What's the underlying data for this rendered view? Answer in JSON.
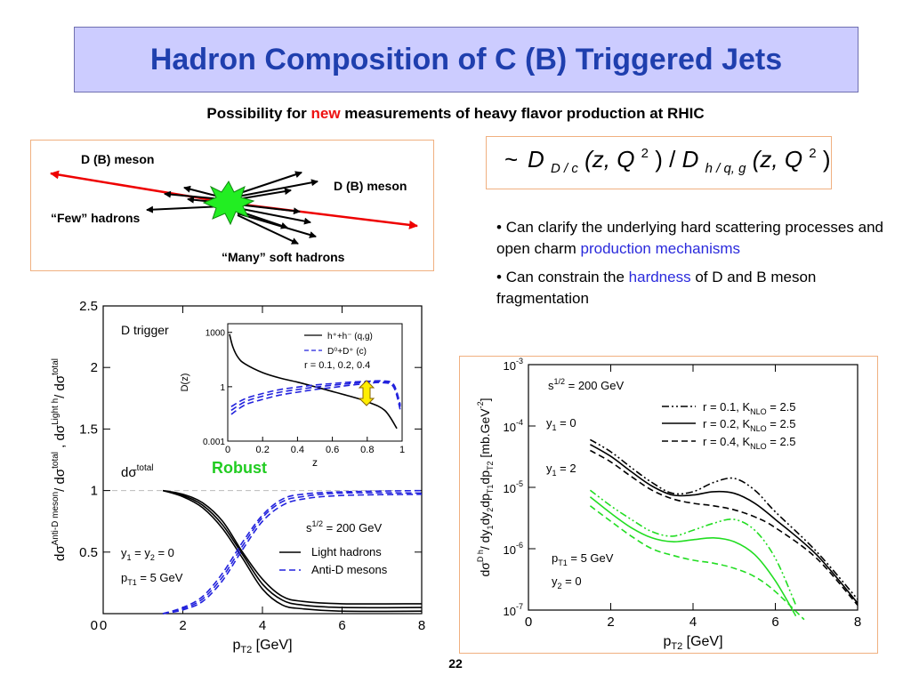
{
  "slide": {
    "title": "Hadron Composition of C (B) Triggered Jets",
    "subtitle_prefix": "Possibility for ",
    "subtitle_highlight": "new",
    "subtitle_suffix": " measurements of heavy flavor production at RHIC",
    "page_number": "22",
    "colors": {
      "title": "#1f3fae",
      "title_bg": "#ccccff",
      "highlight": "#ee1111",
      "link_blue": "#2a2adc"
    }
  },
  "diagram": {
    "label_left_meson": "D (B) meson",
    "label_right_meson": "D (B) meson",
    "label_few": "“Few” hadrons",
    "label_many": "“Many” soft hadrons"
  },
  "formula": {
    "tilde": "~",
    "numerator": "D",
    "num_sub": "D / c",
    "args": "(z, Q",
    "slash": ") / ",
    "denominator": "D",
    "den_sub": "h / q, g",
    "args2": "(z, Q",
    "close": ")",
    "sup": "2"
  },
  "bullets": [
    {
      "prefix": "Can clarify the underlying hard scattering processes and open charm ",
      "highlight": "production mechanisms",
      "suffix": ""
    },
    {
      "prefix": "Can constrain the ",
      "highlight": "hardness",
      "suffix": " of D and B meson fragmentation"
    }
  ],
  "chart_data": [
    {
      "type": "line",
      "title": "D trigger",
      "xlabel": "p_T2 [GeV]",
      "ylabel": "dσ^Anti-D meson / dσ^total , dσ^Light h / dσ^total",
      "xlim": [
        0,
        8
      ],
      "ylim": [
        0,
        2.5
      ],
      "xticks": [
        0,
        2,
        4,
        6,
        8
      ],
      "yticks": [
        0.5,
        1,
        1.5,
        2,
        2.5
      ],
      "annotations": {
        "total": "dσ^total",
        "robust": "Robust",
        "sqrt_s": "s^1/2 = 200 GeV",
        "rapidity": "y1 = y2 = 0",
        "pt1": "pT1 = 5 GeV"
      },
      "legend": [
        "Light hadrons",
        "Anti-D mesons"
      ],
      "series": [
        {
          "name": "Light hadrons",
          "color": "#000000",
          "dash": "solid",
          "x": [
            1.5,
            2,
            2.5,
            3,
            3.5,
            4,
            4.5,
            5,
            6,
            8
          ],
          "values": [
            1.0,
            0.97,
            0.9,
            0.75,
            0.5,
            0.28,
            0.14,
            0.1,
            0.08,
            0.08
          ]
        },
        {
          "name": "Light hadrons",
          "color": "#000000",
          "dash": "solid",
          "x": [
            1.5,
            2,
            2.5,
            3,
            3.5,
            4,
            4.5,
            5,
            6,
            8
          ],
          "values": [
            1.0,
            0.96,
            0.88,
            0.72,
            0.48,
            0.24,
            0.11,
            0.07,
            0.05,
            0.05
          ]
        },
        {
          "name": "Light hadrons",
          "color": "#000000",
          "dash": "solid",
          "x": [
            1.5,
            2,
            2.5,
            3,
            3.5,
            4,
            4.5,
            5,
            6,
            8
          ],
          "values": [
            1.0,
            0.95,
            0.86,
            0.69,
            0.45,
            0.2,
            0.07,
            0.04,
            0.02,
            0.02
          ]
        },
        {
          "name": "Anti-D mesons",
          "color": "#2222dd",
          "dash": "dashed",
          "x": [
            1.5,
            2,
            2.5,
            3,
            3.5,
            4,
            4.5,
            5,
            6,
            8
          ],
          "values": [
            0.0,
            0.03,
            0.1,
            0.27,
            0.52,
            0.75,
            0.88,
            0.93,
            0.96,
            0.97
          ]
        },
        {
          "name": "Anti-D mesons",
          "color": "#2222dd",
          "dash": "dashed",
          "x": [
            1.5,
            2,
            2.5,
            3,
            3.5,
            4,
            4.5,
            5,
            6,
            8
          ],
          "values": [
            0.0,
            0.04,
            0.12,
            0.3,
            0.55,
            0.78,
            0.91,
            0.95,
            0.98,
            0.98
          ]
        },
        {
          "name": "Anti-D mesons",
          "color": "#2222dd",
          "dash": "dashed",
          "x": [
            1.5,
            2,
            2.5,
            3,
            3.5,
            4,
            4.5,
            5,
            6,
            8
          ],
          "values": [
            0.0,
            0.05,
            0.14,
            0.33,
            0.58,
            0.8,
            0.93,
            0.97,
            0.99,
            1.0
          ]
        }
      ]
    },
    {
      "type": "line",
      "title": "inset",
      "xlabel": "z",
      "ylabel": "D(z)",
      "xlim": [
        0,
        1
      ],
      "ylim_log": [
        0.001,
        3000
      ],
      "xticks": [
        0,
        0.2,
        0.4,
        0.6,
        0.8,
        1
      ],
      "xtick_labels": [
        "0",
        "0.2",
        "0.4",
        "0.6",
        "0.8",
        "1"
      ],
      "yticks": [
        0.001,
        1,
        1000
      ],
      "ytick_labels": [
        "0.001",
        "1",
        "1000"
      ],
      "legend": [
        "h⁺+h⁻ (q,g)",
        "D⁰+D⁺ (c)",
        "r = 0.1, 0.2, 0.4"
      ],
      "series": [
        {
          "name": "h⁺+h⁻ (q,g)",
          "color": "#000000",
          "dash": "solid",
          "x": [
            0.01,
            0.03,
            0.06,
            0.1,
            0.2,
            0.3,
            0.4,
            0.5,
            0.6,
            0.7,
            0.8,
            0.9,
            0.97
          ],
          "values": [
            800,
            150,
            40,
            18,
            6,
            3,
            1.8,
            1.0,
            0.55,
            0.3,
            0.15,
            0.05,
            0.005
          ]
        },
        {
          "name": "D⁰+D⁺ (c)",
          "color": "#2222dd",
          "dash": "dashed",
          "x": [
            0.02,
            0.1,
            0.2,
            0.3,
            0.4,
            0.5,
            0.6,
            0.7,
            0.8,
            0.88,
            0.95,
            0.99
          ],
          "values": [
            0.03,
            0.1,
            0.2,
            0.35,
            0.5,
            0.7,
            0.9,
            1.2,
            1.5,
            1.7,
            1.0,
            0.05
          ]
        },
        {
          "name": "D⁰+D⁺ (c)",
          "color": "#2222dd",
          "dash": "dashed",
          "x": [
            0.02,
            0.1,
            0.2,
            0.3,
            0.4,
            0.5,
            0.6,
            0.7,
            0.8,
            0.88,
            0.95,
            0.99
          ],
          "values": [
            0.05,
            0.15,
            0.3,
            0.5,
            0.7,
            0.95,
            1.2,
            1.5,
            1.8,
            1.9,
            1.2,
            0.08
          ]
        },
        {
          "name": "D⁰+D⁺ (c)",
          "color": "#2222dd",
          "dash": "dashed",
          "x": [
            0.02,
            0.1,
            0.2,
            0.3,
            0.4,
            0.5,
            0.6,
            0.7,
            0.8,
            0.88,
            0.95,
            0.99
          ],
          "values": [
            0.08,
            0.22,
            0.42,
            0.7,
            0.95,
            1.25,
            1.5,
            1.8,
            2.0,
            2.1,
            1.4,
            0.1
          ]
        }
      ]
    },
    {
      "type": "line",
      "title": "",
      "xlabel": "p_T2 [GeV]",
      "ylabel": "dσ^{D h}/ dy1 dy2 dpT1 dpT2 [mb.GeV^-2]",
      "xlim": [
        0,
        8
      ],
      "ylim_log": [
        1e-07,
        0.001
      ],
      "xticks": [
        0,
        2,
        4,
        6,
        8
      ],
      "yticks": [
        1e-07,
        1e-06,
        1e-05,
        0.0001,
        0.001
      ],
      "ytick_labels": [
        "10^-7",
        "10^-6",
        "10^-5",
        "10^-4",
        "10^-3"
      ],
      "annotations": {
        "sqrt_s": "s^1/2 = 200 GeV",
        "y1_0": "y1 = 0",
        "y1_2": "y1 = 2",
        "pt1": "pT1 = 5 GeV",
        "y2": "y2 = 0"
      },
      "legend": [
        "r = 0.1, K_NLO = 2.5",
        "r = 0.2, K_NLO = 2.5",
        "r = 0.4, K_NLO = 2.5"
      ],
      "series": [
        {
          "name": "r = 0.1, K_NLO = 2.5",
          "color": "#000000",
          "dash": "dashdotdot",
          "x": [
            1.5,
            2,
            2.5,
            3,
            3.5,
            4,
            4.5,
            5,
            5.5,
            6,
            7,
            8
          ],
          "values": [
            6e-05,
            3.8e-05,
            2.1e-05,
            1.2e-05,
            8e-06,
            8.5e-06,
            1.2e-05,
            1.4e-05,
            9e-06,
            4e-06,
            9e-07,
            1.5e-07
          ]
        },
        {
          "name": "r = 0.2, K_NLO = 2.5",
          "color": "#000000",
          "dash": "solid",
          "x": [
            1.5,
            2,
            2.5,
            3,
            3.5,
            4,
            4.5,
            5,
            5.5,
            6,
            7,
            8
          ],
          "values": [
            5e-05,
            3.2e-05,
            1.8e-05,
            1.05e-05,
            7.5e-06,
            7.5e-06,
            8.5e-06,
            8e-06,
            5.5e-06,
            3e-06,
            8e-07,
            1.3e-07
          ]
        },
        {
          "name": "r = 0.4, K_NLO = 2.5",
          "color": "#000000",
          "dash": "dashed",
          "x": [
            1.5,
            2,
            2.5,
            3,
            3.5,
            4,
            4.5,
            5,
            5.5,
            6,
            7,
            8
          ],
          "values": [
            4e-05,
            2.6e-05,
            1.5e-05,
            9e-06,
            6.5e-06,
            5.5e-06,
            5e-06,
            4.3e-06,
            3.3e-06,
            2.2e-06,
            7e-07,
            1.2e-07
          ]
        },
        {
          "name": "r = 0.1, K_NLO = 2.5",
          "color": "#22dd22",
          "dash": "dashdotdot",
          "x": [
            1.5,
            2,
            2.5,
            3,
            3.5,
            4,
            4.5,
            5,
            5.5,
            6,
            6.5
          ],
          "values": [
            9e-06,
            5e-06,
            3e-06,
            1.9e-06,
            1.6e-06,
            2e-06,
            2.6e-06,
            3e-06,
            2e-06,
            7e-07,
            1.2e-07
          ]
        },
        {
          "name": "r = 0.2, K_NLO = 2.5",
          "color": "#22dd22",
          "dash": "solid",
          "x": [
            1.5,
            2,
            2.5,
            3,
            3.5,
            4,
            4.5,
            5,
            5.5,
            6,
            6.5
          ],
          "values": [
            7e-06,
            3.8e-06,
            2.2e-06,
            1.5e-06,
            1.3e-06,
            1.4e-06,
            1.5e-06,
            1.3e-06,
            8e-07,
            3e-07,
            8e-08
          ]
        },
        {
          "name": "r = 0.4, K_NLO = 2.5",
          "color": "#22dd22",
          "dash": "dashed",
          "x": [
            1.5,
            2,
            2.5,
            3,
            3.5,
            4,
            4.5,
            5,
            5.5,
            6,
            6.7
          ],
          "values": [
            5e-06,
            2.8e-06,
            1.6e-06,
            1e-06,
            7.8e-07,
            6.5e-07,
            5.8e-07,
            4.8e-07,
            3.5e-07,
            2e-07,
            7e-08
          ]
        }
      ]
    }
  ]
}
